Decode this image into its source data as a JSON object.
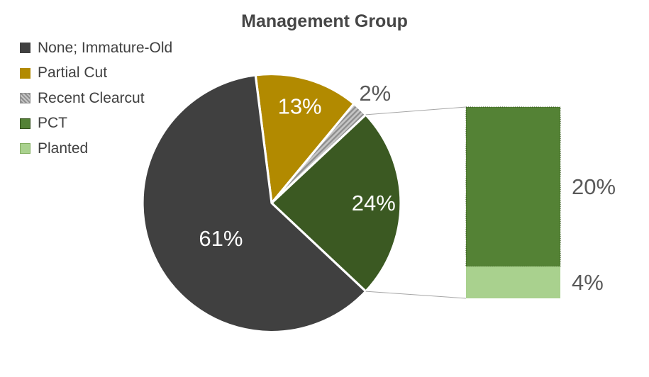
{
  "chart": {
    "title": "Management Group"
  },
  "legend": {
    "position": "top-left",
    "items": [
      {
        "label": "None; Immature-Old",
        "color": "#404040",
        "pattern": "solid"
      },
      {
        "label": "Partial Cut",
        "color": "#B28A00",
        "pattern": "solid"
      },
      {
        "label": "Recent Clearcut",
        "color": "#C6C6C6",
        "pattern": "hatch",
        "border": "#8F8F8F"
      },
      {
        "label": "PCT",
        "color": "#548235",
        "pattern": "solid",
        "border": "#33511B"
      },
      {
        "label": "Planted",
        "color": "#A9D18E",
        "pattern": "solid",
        "border": "#82AE60"
      }
    ]
  },
  "chart_data": {
    "type": "pie",
    "variant": "bar-of-pie",
    "title": "Management Group",
    "legend_position": "top-left",
    "start_angle_deg": -7.2,
    "units": "percent",
    "connector_color": "#A6A6A6",
    "slices": [
      {
        "category": "Partial Cut",
        "value": 13,
        "label": "13%",
        "color": "#B28A00",
        "label_color": "#FFFFFF"
      },
      {
        "category": "Recent Clearcut",
        "value": 2,
        "label": "2%",
        "color": "#C6C6C6",
        "pattern": "hatch",
        "label_color": "#595959",
        "label_outside": true
      },
      {
        "category": "Other (PCT + Planted)",
        "value": 24,
        "label": "24%",
        "color": "#3B5922",
        "label_color": "#FFFFFF",
        "expands_to_bar": true
      },
      {
        "category": "None; Immature-Old",
        "value": 61,
        "label": "61%",
        "color": "#404040",
        "label_color": "#FFFFFF"
      }
    ],
    "bar": {
      "label_color": "#595959",
      "segments": [
        {
          "category": "PCT",
          "value": 20,
          "label": "20%",
          "color": "#548235"
        },
        {
          "category": "Planted",
          "value": 4,
          "label": "4%",
          "color": "#A9D18E"
        }
      ]
    }
  }
}
